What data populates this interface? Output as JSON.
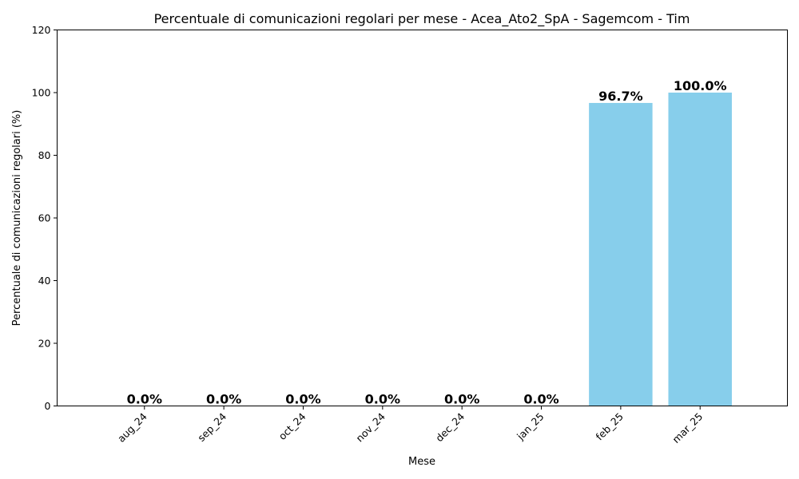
{
  "chart_data": {
    "type": "bar",
    "title": "Percentuale di comunicazioni regolari per mese - Acea_Ato2_SpA - Sagemcom - Tim",
    "xlabel": "Mese",
    "ylabel": "Percentuale di comunicazioni regolari (%)",
    "categories": [
      "aug_24",
      "sep_24",
      "oct_24",
      "nov_24",
      "dec_24",
      "jan_25",
      "feb_25",
      "mar_25"
    ],
    "values": [
      0.0,
      0.0,
      0.0,
      0.0,
      0.0,
      0.0,
      96.7,
      100.0
    ],
    "data_labels": [
      "0.0%",
      "0.0%",
      "0.0%",
      "0.0%",
      "0.0%",
      "0.0%",
      "96.7%",
      "100.0%"
    ],
    "ylim": [
      0,
      120
    ],
    "yticks": [
      0,
      20,
      40,
      60,
      80,
      100,
      120
    ],
    "bar_color": "#87CEEB",
    "grid": false,
    "legend": "none"
  }
}
